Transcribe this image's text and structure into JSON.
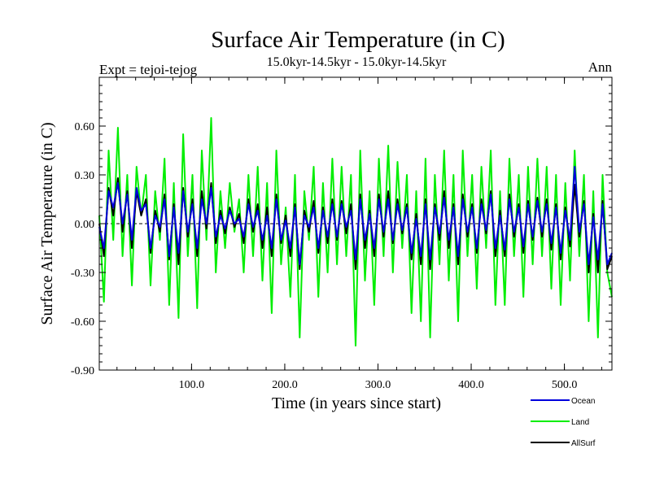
{
  "chart_data": {
    "type": "line",
    "title": "Surface Air Temperature (in C)",
    "subtitle": "15.0kyr-14.5kyr - 15.0kyr-14.5kyr",
    "left_label": "Expt = tejoi-tejog",
    "right_label": "Ann",
    "xlabel": "Time (in years since start)",
    "ylabel": "Surface Air Temperature (in C)",
    "xlim": [
      1,
      551
    ],
    "ylim": [
      -0.9,
      0.9
    ],
    "xticks": [
      100,
      200,
      300,
      400,
      500
    ],
    "xtick_labels": [
      "100.0",
      "200.0",
      "300.0",
      "400.0",
      "500.0"
    ],
    "yticks": [
      -0.9,
      -0.6,
      -0.3,
      0.0,
      0.3,
      0.6
    ],
    "ytick_labels": [
      "-0.90",
      "-0.60",
      "-0.30",
      "0.00",
      "0.30",
      "0.60"
    ],
    "zero_line": true,
    "legend_position": "bottom-right",
    "series": [
      {
        "name": "Land",
        "color": "#00ee00",
        "x": [
          1,
          6,
          11,
          16,
          21,
          26,
          31,
          36,
          41,
          46,
          51,
          56,
          61,
          66,
          71,
          76,
          81,
          86,
          91,
          96,
          101,
          106,
          111,
          116,
          121,
          126,
          131,
          136,
          141,
          146,
          151,
          156,
          161,
          166,
          171,
          176,
          181,
          186,
          191,
          196,
          201,
          206,
          211,
          216,
          221,
          226,
          231,
          236,
          241,
          246,
          251,
          256,
          261,
          266,
          271,
          276,
          281,
          286,
          291,
          296,
          301,
          306,
          311,
          316,
          321,
          326,
          331,
          336,
          341,
          346,
          351,
          356,
          361,
          366,
          371,
          376,
          381,
          386,
          391,
          396,
          401,
          406,
          411,
          416,
          421,
          426,
          431,
          436,
          441,
          446,
          451,
          456,
          461,
          466,
          471,
          476,
          481,
          486,
          491,
          496,
          501,
          506,
          511,
          516,
          521,
          526,
          531,
          536,
          541,
          546,
          551
        ],
        "values": [
          0.05,
          -0.48,
          0.45,
          -0.1,
          0.59,
          -0.2,
          0.3,
          -0.38,
          0.35,
          0.05,
          0.3,
          -0.38,
          0.2,
          -0.1,
          0.4,
          -0.5,
          0.25,
          -0.58,
          0.55,
          -0.2,
          0.3,
          -0.52,
          0.45,
          -0.1,
          0.65,
          -0.3,
          0.2,
          -0.15,
          0.25,
          -0.05,
          0.15,
          -0.3,
          0.3,
          -0.2,
          0.35,
          -0.35,
          0.25,
          -0.55,
          0.45,
          -0.25,
          0.1,
          -0.45,
          0.3,
          -0.7,
          0.2,
          -0.1,
          0.35,
          -0.45,
          0.25,
          -0.3,
          0.4,
          -0.25,
          0.35,
          -0.2,
          0.3,
          -0.75,
          0.45,
          -0.35,
          0.2,
          -0.5,
          0.4,
          -0.2,
          0.48,
          -0.3,
          0.38,
          -0.15,
          0.3,
          -0.55,
          0.2,
          -0.6,
          0.4,
          -0.7,
          0.3,
          -0.25,
          0.45,
          -0.35,
          0.3,
          -0.6,
          0.45,
          -0.2,
          0.3,
          -0.4,
          0.35,
          -0.15,
          0.45,
          -0.5,
          0.2,
          -0.5,
          0.4,
          -0.2,
          0.3,
          -0.45,
          0.35,
          -0.25,
          0.4,
          -0.2,
          0.35,
          -0.4,
          0.3,
          -0.5,
          0.25,
          -0.35,
          0.45,
          -0.2,
          0.3,
          -0.6,
          0.2,
          -0.7,
          0.3,
          -0.3,
          -0.45
        ]
      },
      {
        "name": "AllSurf",
        "color": "#000000",
        "x": [
          1,
          6,
          11,
          16,
          21,
          26,
          31,
          36,
          41,
          46,
          51,
          56,
          61,
          66,
          71,
          76,
          81,
          86,
          91,
          96,
          101,
          106,
          111,
          116,
          121,
          126,
          131,
          136,
          141,
          146,
          151,
          156,
          161,
          166,
          171,
          176,
          181,
          186,
          191,
          196,
          201,
          206,
          211,
          216,
          221,
          226,
          231,
          236,
          241,
          246,
          251,
          256,
          261,
          266,
          271,
          276,
          281,
          286,
          291,
          296,
          301,
          306,
          311,
          316,
          321,
          326,
          331,
          336,
          341,
          346,
          351,
          356,
          361,
          366,
          371,
          376,
          381,
          386,
          391,
          396,
          401,
          406,
          411,
          416,
          421,
          426,
          431,
          436,
          441,
          446,
          451,
          456,
          461,
          466,
          471,
          476,
          481,
          486,
          491,
          496,
          501,
          506,
          511,
          516,
          521,
          526,
          531,
          536,
          541,
          546,
          551
        ],
        "values": [
          0.0,
          -0.2,
          0.22,
          0.05,
          0.28,
          -0.05,
          0.2,
          -0.15,
          0.2,
          0.05,
          0.15,
          -0.18,
          0.08,
          -0.05,
          0.18,
          -0.22,
          0.12,
          -0.25,
          0.22,
          -0.08,
          0.15,
          -0.2,
          0.2,
          -0.03,
          0.25,
          -0.12,
          0.08,
          -0.06,
          0.1,
          -0.02,
          0.06,
          -0.12,
          0.15,
          -0.05,
          0.12,
          -0.15,
          0.1,
          -0.2,
          0.18,
          -0.12,
          0.05,
          -0.2,
          0.12,
          -0.28,
          0.08,
          -0.05,
          0.14,
          -0.18,
          0.1,
          -0.12,
          0.15,
          -0.1,
          0.14,
          -0.06,
          0.12,
          -0.28,
          0.18,
          -0.15,
          0.08,
          -0.2,
          0.18,
          -0.08,
          0.2,
          -0.12,
          0.15,
          -0.06,
          0.12,
          -0.22,
          0.06,
          -0.25,
          0.15,
          -0.28,
          0.12,
          -0.1,
          0.2,
          -0.15,
          0.12,
          -0.25,
          0.18,
          -0.08,
          0.12,
          -0.18,
          0.15,
          -0.06,
          0.2,
          -0.2,
          0.08,
          -0.2,
          0.18,
          -0.08,
          0.12,
          -0.18,
          0.14,
          -0.1,
          0.16,
          -0.08,
          0.15,
          -0.16,
          0.12,
          -0.22,
          0.1,
          -0.14,
          0.24,
          -0.08,
          0.14,
          -0.3,
          0.06,
          -0.3,
          0.14,
          -0.28,
          -0.2
        ]
      },
      {
        "name": "Ocean",
        "color": "#0000dd",
        "x": [
          1,
          6,
          11,
          16,
          21,
          26,
          31,
          36,
          41,
          46,
          51,
          56,
          61,
          66,
          71,
          76,
          81,
          86,
          91,
          96,
          101,
          106,
          111,
          116,
          121,
          126,
          131,
          136,
          141,
          146,
          151,
          156,
          161,
          166,
          171,
          176,
          181,
          186,
          191,
          196,
          201,
          206,
          211,
          216,
          221,
          226,
          231,
          236,
          241,
          246,
          251,
          256,
          261,
          266,
          271,
          276,
          281,
          286,
          291,
          296,
          301,
          306,
          311,
          316,
          321,
          326,
          331,
          336,
          341,
          346,
          351,
          356,
          361,
          366,
          371,
          376,
          381,
          386,
          391,
          396,
          401,
          406,
          411,
          416,
          421,
          426,
          431,
          436,
          441,
          446,
          451,
          456,
          461,
          466,
          471,
          476,
          481,
          486,
          491,
          496,
          501,
          506,
          511,
          516,
          521,
          526,
          531,
          536,
          541,
          546,
          551
        ],
        "values": [
          -0.02,
          -0.15,
          0.2,
          0.1,
          0.25,
          0.0,
          0.18,
          -0.1,
          0.22,
          0.08,
          0.12,
          -0.15,
          0.05,
          -0.02,
          0.15,
          -0.2,
          0.1,
          -0.18,
          0.2,
          -0.05,
          0.12,
          -0.15,
          0.15,
          0.0,
          0.22,
          -0.08,
          0.05,
          -0.03,
          0.08,
          0.0,
          0.03,
          -0.08,
          0.12,
          -0.02,
          0.08,
          -0.1,
          0.05,
          -0.15,
          0.15,
          -0.1,
          0.02,
          -0.15,
          0.1,
          -0.25,
          0.05,
          -0.02,
          0.1,
          -0.15,
          0.08,
          -0.08,
          0.12,
          -0.08,
          0.12,
          -0.02,
          0.08,
          -0.22,
          0.15,
          -0.1,
          0.06,
          -0.15,
          0.15,
          -0.05,
          0.15,
          -0.1,
          0.12,
          -0.04,
          0.1,
          -0.18,
          0.03,
          -0.2,
          0.12,
          -0.22,
          0.1,
          -0.06,
          0.16,
          -0.1,
          0.1,
          -0.2,
          0.15,
          -0.05,
          0.1,
          -0.15,
          0.12,
          -0.04,
          0.18,
          -0.15,
          0.05,
          -0.16,
          0.15,
          -0.05,
          0.1,
          -0.14,
          0.12,
          -0.08,
          0.14,
          -0.05,
          0.12,
          -0.12,
          0.1,
          -0.18,
          0.08,
          -0.1,
          0.35,
          -0.05,
          0.12,
          -0.25,
          0.04,
          -0.22,
          0.12,
          -0.25,
          -0.18
        ]
      }
    ],
    "legend": [
      {
        "name": "Ocean",
        "color": "#0000dd"
      },
      {
        "name": "Land",
        "color": "#00ee00"
      },
      {
        "name": "AllSurf",
        "color": "#000000"
      }
    ]
  }
}
